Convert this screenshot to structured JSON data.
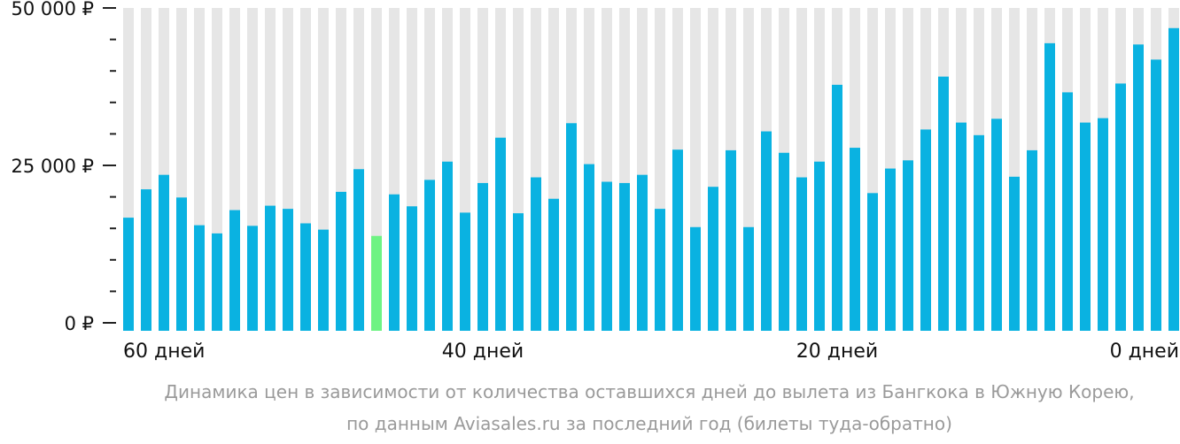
{
  "chart_data": {
    "type": "bar",
    "y_tick_labels": [
      "50 000 ₽",
      "25 000 ₽",
      "0 ₽"
    ],
    "y_tick_values": [
      50000,
      25000,
      0
    ],
    "ylim": [
      0,
      50000
    ],
    "x_tick_labels": [
      {
        "label": "60 дней",
        "index": 0
      },
      {
        "label": "40 дней",
        "index": 20
      },
      {
        "label": "20 дней",
        "index": 40
      },
      {
        "label": "0 дней",
        "index": 59
      }
    ],
    "values": [
      16700,
      21200,
      23500,
      19900,
      15500,
      14200,
      17900,
      15400,
      18600,
      18100,
      15800,
      14800,
      20800,
      24400,
      13800,
      20400,
      18500,
      22700,
      25600,
      17500,
      22200,
      29400,
      17400,
      23100,
      19700,
      31700,
      25200,
      22400,
      22200,
      23500,
      18100,
      27500,
      15200,
      21600,
      27400,
      15200,
      30400,
      27000,
      23100,
      25600,
      37800,
      27800,
      20600,
      24500,
      25800,
      30700,
      39100,
      31800,
      29800,
      32400,
      23200,
      27400,
      44400,
      36600,
      31800,
      32500,
      38000,
      44200,
      41800,
      46800
    ],
    "highlight_index": 14,
    "colors": {
      "bar": "#0ab2e1",
      "highlight": "#6ef383",
      "background_column": "#e6e6e6"
    }
  },
  "caption": {
    "line1": "Динамика цен в зависимости от количества оставшихся дней до вылета из Бангкока в Южную Корею,",
    "line2": "по данным Aviasales.ru за последний год (билеты туда-обратно)"
  }
}
